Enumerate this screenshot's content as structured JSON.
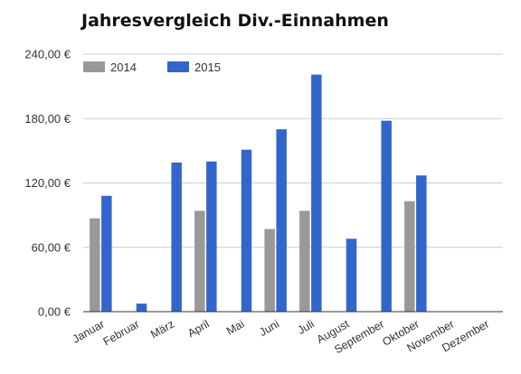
{
  "chart_data": {
    "type": "bar",
    "title": "Jahresvergleich Div.-Einnahmen",
    "xlabel": "",
    "ylabel": "",
    "categories": [
      "Januar",
      "Februar",
      "März",
      "April",
      "Mai",
      "Juni",
      "Juli",
      "August",
      "September",
      "Oktober",
      "November",
      "Dezember"
    ],
    "series": [
      {
        "name": "2014",
        "color": "#999999",
        "values": [
          87,
          0,
          0,
          94,
          0,
          77,
          94,
          0,
          0,
          103,
          0,
          0
        ]
      },
      {
        "name": "2015",
        "color": "#3366cc",
        "values": [
          108,
          7.5,
          139,
          140,
          151,
          170,
          221,
          68,
          178,
          127,
          0,
          0
        ]
      }
    ],
    "ylim": [
      0,
      240
    ],
    "yticks": [
      0,
      60,
      120,
      180,
      240
    ],
    "ytick_labels": [
      "0,00 €",
      "60,00 €",
      "120,00 €",
      "180,00 €",
      "240,00 €"
    ],
    "grid": true,
    "legend_position": "top-left"
  }
}
